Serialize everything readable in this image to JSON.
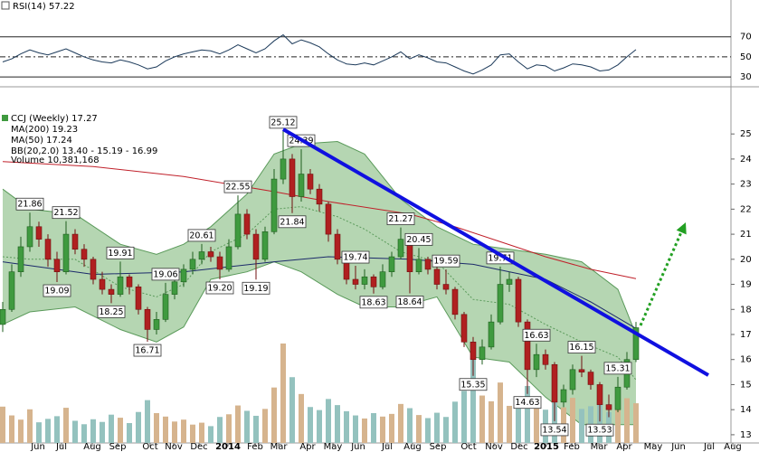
{
  "chart_data": {
    "type": "candlestick",
    "title": "CCJ (Weekly) 17.27",
    "x": [
      0,
      1,
      2,
      3,
      4,
      5,
      6,
      7,
      8,
      9,
      10,
      11,
      12,
      13,
      14,
      15,
      16,
      17,
      18,
      19,
      20,
      21,
      22,
      23,
      24,
      25,
      26,
      27,
      28,
      29,
      30,
      31,
      32,
      33,
      34,
      35,
      36,
      37,
      38,
      39,
      40,
      41,
      42,
      43,
      44,
      45,
      46,
      47,
      48,
      49,
      50,
      51,
      52,
      53,
      54,
      55,
      56,
      57,
      58,
      59,
      60,
      61,
      62,
      63,
      64,
      65,
      66,
      67,
      68,
      69,
      70
    ],
    "open": [
      17.4,
      18.0,
      19.5,
      20.5,
      21.3,
      20.8,
      20.0,
      19.5,
      21.0,
      20.4,
      20.0,
      19.2,
      18.8,
      18.6,
      19.3,
      18.9,
      18.0,
      17.2,
      17.6,
      18.6,
      19.1,
      19.6,
      20.0,
      20.3,
      20.1,
      19.6,
      20.5,
      21.8,
      21.0,
      20.0,
      21.1,
      23.2,
      24.0,
      22.5,
      23.4,
      22.8,
      22.2,
      21.0,
      20.0,
      19.2,
      19.0,
      19.3,
      18.9,
      19.5,
      20.1,
      20.8,
      19.5,
      20.0,
      19.6,
      19.0,
      18.8,
      17.8,
      16.7,
      16.0,
      16.5,
      17.5,
      19.0,
      19.2,
      17.5,
      15.6,
      16.2,
      15.8,
      14.3,
      14.8,
      15.6,
      15.5,
      15.0,
      14.2,
      14.0,
      14.9,
      16.0
    ],
    "high": [
      18.3,
      19.8,
      20.9,
      21.86,
      21.5,
      21.0,
      20.3,
      21.52,
      21.2,
      20.6,
      20.1,
      19.5,
      19.0,
      19.91,
      19.4,
      19.0,
      18.1,
      17.9,
      19.06,
      19.4,
      19.8,
      20.3,
      20.61,
      20.5,
      20.3,
      20.8,
      22.55,
      22.0,
      21.2,
      21.3,
      23.6,
      25.12,
      24.2,
      24.39,
      23.6,
      23.0,
      22.3,
      21.2,
      20.2,
      19.74,
      19.6,
      19.4,
      19.8,
      20.3,
      21.27,
      20.9,
      20.45,
      20.1,
      19.7,
      19.59,
      18.9,
      17.9,
      16.9,
      16.8,
      17.8,
      19.71,
      19.5,
      19.3,
      17.6,
      16.63,
      16.4,
      15.9,
      15.0,
      15.8,
      16.15,
      15.6,
      15.1,
      14.6,
      15.31,
      16.3,
      17.5
    ],
    "low": [
      17.1,
      17.9,
      19.3,
      20.3,
      20.5,
      19.7,
      19.09,
      19.4,
      20.2,
      19.7,
      19.0,
      18.6,
      18.25,
      18.5,
      18.6,
      17.8,
      16.71,
      17.0,
      17.5,
      18.4,
      18.9,
      19.4,
      19.8,
      19.9,
      19.2,
      19.5,
      20.4,
      20.8,
      19.19,
      19.9,
      21.0,
      23.0,
      21.84,
      22.3,
      22.6,
      21.9,
      20.7,
      19.8,
      19.0,
      18.8,
      18.8,
      18.63,
      18.8,
      19.3,
      20.0,
      18.64,
      19.4,
      19.4,
      18.8,
      18.6,
      17.6,
      16.5,
      15.35,
      15.8,
      16.4,
      17.4,
      18.7,
      17.3,
      14.63,
      15.3,
      15.6,
      13.54,
      14.1,
      14.6,
      15.3,
      14.8,
      13.53,
      13.7,
      13.9,
      14.8,
      15.9
    ],
    "close": [
      18.0,
      19.5,
      20.5,
      21.3,
      20.8,
      20.0,
      19.5,
      21.0,
      20.4,
      20.0,
      19.2,
      18.8,
      18.6,
      19.3,
      18.9,
      18.0,
      17.2,
      17.6,
      18.6,
      19.1,
      19.6,
      20.0,
      20.3,
      20.1,
      19.6,
      20.5,
      21.8,
      21.0,
      20.0,
      21.1,
      23.2,
      24.0,
      22.5,
      23.4,
      22.8,
      22.2,
      21.0,
      20.0,
      19.2,
      19.0,
      19.3,
      18.9,
      19.5,
      20.1,
      20.8,
      19.5,
      20.0,
      19.6,
      19.0,
      18.8,
      17.8,
      16.7,
      16.0,
      16.5,
      17.5,
      19.0,
      19.2,
      17.5,
      15.6,
      16.2,
      15.8,
      14.3,
      14.8,
      15.6,
      15.5,
      15.0,
      14.2,
      14.0,
      14.9,
      16.0,
      17.27
    ],
    "volume_name": "Volume 10,381,168",
    "volume": [
      9500000,
      7200000,
      6100000,
      8800000,
      5400000,
      6300000,
      7000000,
      9200000,
      5800000,
      4900000,
      6200000,
      5500000,
      7400000,
      6600000,
      5200000,
      8100000,
      11200000,
      7800000,
      6900000,
      5600000,
      6100000,
      4800000,
      5300000,
      4400000,
      6800000,
      7500000,
      9800000,
      8400000,
      7100000,
      8900000,
      14500000,
      26000000,
      17200000,
      12800000,
      9400000,
      8600000,
      11500000,
      9900000,
      8300000,
      7200000,
      6400000,
      7800000,
      6900000,
      7600000,
      10200000,
      9100000,
      7300000,
      6500000,
      7900000,
      6800000,
      10800000,
      13600000,
      24000000,
      12400000,
      10900000,
      15800000,
      9700000,
      11300000,
      14900000,
      10600000,
      8700000,
      12200000,
      9300000,
      11800000,
      8900000,
      9600000,
      12700000,
      8100000,
      9400000,
      11700000,
      10381168
    ],
    "up_color": "#3f9a3f",
    "down_color": "#b02020",
    "volume_up_color": "#d6b48e",
    "volume_down_color": "#94c2be",
    "xlim": [
      -0.3,
      83.6
    ],
    "xticks": [
      {
        "value": 3.9,
        "label": "Jun"
      },
      {
        "value": 6.5,
        "label": "Jul"
      },
      {
        "value": 9.9,
        "label": "Aug"
      },
      {
        "value": 12.7,
        "label": "Sep"
      },
      {
        "value": 16.3,
        "label": "Oct"
      },
      {
        "value": 18.9,
        "label": "Nov"
      },
      {
        "value": 21.7,
        "label": "Dec"
      },
      {
        "value": 24.9,
        "label": "2014"
      },
      {
        "value": 27.9,
        "label": "Feb"
      },
      {
        "value": 30.5,
        "label": "Mar"
      },
      {
        "value": 33.7,
        "label": "Apr"
      },
      {
        "value": 36.5,
        "label": "May"
      },
      {
        "value": 39.3,
        "label": "Jun"
      },
      {
        "value": 42.5,
        "label": "Jul"
      },
      {
        "value": 45.3,
        "label": "Aug"
      },
      {
        "value": 48.1,
        "label": "Sep"
      },
      {
        "value": 51.5,
        "label": "Oct"
      },
      {
        "value": 54.3,
        "label": "Nov"
      },
      {
        "value": 57.1,
        "label": "Dec"
      },
      {
        "value": 60.1,
        "label": "2015"
      },
      {
        "value": 62.9,
        "label": "Feb"
      },
      {
        "value": 65.9,
        "label": "Mar"
      },
      {
        "value": 68.7,
        "label": "Apr"
      },
      {
        "value": 71.9,
        "label": "May"
      },
      {
        "value": 74.7,
        "label": "Jun"
      },
      {
        "value": 78.1,
        "label": "Jul"
      },
      {
        "value": 80.7,
        "label": "Aug"
      }
    ],
    "ylim": [
      12.6,
      25.8
    ],
    "yticks": [
      13,
      14,
      15,
      16,
      17,
      18,
      19,
      20,
      21,
      22,
      23,
      24,
      25
    ],
    "series": [
      {
        "name": "MA(200) 19.23",
        "color": "#c0202a",
        "x": [
          0,
          10,
          20,
          30,
          36,
          45,
          50,
          55,
          60,
          65,
          70
        ],
        "values": [
          23.9,
          23.7,
          23.3,
          22.7,
          22.3,
          21.8,
          21.3,
          20.7,
          20.1,
          19.6,
          19.23
        ]
      },
      {
        "name": "MA(50) 17.24",
        "color": "#1c2a6a",
        "x": [
          0,
          10,
          20,
          30,
          36,
          45,
          52,
          60,
          65,
          70
        ],
        "values": [
          19.9,
          19.4,
          19.5,
          19.9,
          20.1,
          20.0,
          19.8,
          19.2,
          18.3,
          17.24
        ]
      }
    ],
    "bands": {
      "name": "BB(20,2.0) 13.40 - 15.19 - 16.99",
      "color": "#5a9a5a",
      "x": [
        0,
        3,
        8,
        13,
        17,
        20,
        23,
        27,
        30,
        33,
        37,
        40,
        44,
        48,
        52,
        56,
        60,
        64,
        68,
        70
      ],
      "upper": [
        22.8,
        22.0,
        21.8,
        20.6,
        20.2,
        20.6,
        21.3,
        22.6,
        24.2,
        24.6,
        24.7,
        24.2,
        22.4,
        21.3,
        20.6,
        20.4,
        20.2,
        19.9,
        18.8,
        16.99
      ],
      "middle": [
        20.1,
        20.0,
        20.0,
        18.9,
        18.5,
        19.0,
        20.3,
        21.0,
        22.0,
        22.1,
        21.7,
        21.2,
        20.3,
        19.9,
        18.4,
        18.2,
        17.4,
        16.7,
        16.1,
        15.19
      ],
      "lower": [
        17.4,
        17.9,
        18.1,
        17.2,
        16.7,
        17.3,
        19.2,
        19.5,
        19.9,
        19.5,
        18.6,
        18.1,
        18.1,
        18.5,
        16.1,
        15.9,
        14.5,
        13.4,
        13.4,
        13.4
      ]
    },
    "annotations": [
      {
        "x": 3,
        "value": 21.86
      },
      {
        "x": 6,
        "value": 19.09
      },
      {
        "x": 7,
        "value": 21.52
      },
      {
        "x": 12,
        "value": 18.25
      },
      {
        "x": 13,
        "value": 19.91
      },
      {
        "x": 16,
        "value": 16.71
      },
      {
        "x": 18,
        "value": 19.06
      },
      {
        "x": 22,
        "value": 20.61
      },
      {
        "x": 24,
        "value": 19.2,
        "label": "19.20"
      },
      {
        "x": 26,
        "value": 22.55
      },
      {
        "x": 28,
        "value": 19.19
      },
      {
        "x": 31,
        "value": 25.12
      },
      {
        "x": 32,
        "value": 21.84
      },
      {
        "x": 33,
        "value": 24.39
      },
      {
        "x": 39,
        "value": 19.74
      },
      {
        "x": 41,
        "value": 18.63
      },
      {
        "x": 44,
        "value": 21.27
      },
      {
        "x": 45,
        "value": 18.64
      },
      {
        "x": 46,
        "value": 20.45
      },
      {
        "x": 49,
        "value": 19.59
      },
      {
        "x": 52,
        "value": 15.35
      },
      {
        "x": 55,
        "value": 19.71
      },
      {
        "x": 58,
        "value": 14.63
      },
      {
        "x": 59,
        "value": 16.63
      },
      {
        "x": 61,
        "value": 13.54
      },
      {
        "x": 64,
        "value": 16.15
      },
      {
        "x": 66,
        "value": 13.53
      },
      {
        "x": 68,
        "value": 15.31
      }
    ],
    "rsi": {
      "title": "RSI(14) 57.22",
      "color": "#1c3a5a",
      "values": [
        45,
        48,
        53,
        57,
        54,
        52,
        55,
        58,
        54,
        50,
        47,
        45,
        44,
        47,
        45,
        42,
        38,
        40,
        46,
        50,
        53,
        55,
        57,
        56,
        53,
        57,
        62,
        58,
        54,
        58,
        66,
        72,
        63,
        67,
        64,
        60,
        53,
        47,
        43,
        42,
        44,
        42,
        46,
        50,
        55,
        48,
        52,
        49,
        45,
        44,
        40,
        36,
        33,
        37,
        42,
        52,
        53,
        45,
        38,
        42,
        41,
        36,
        39,
        43,
        42,
        40,
        36,
        37,
        42,
        50,
        57.22
      ],
      "ylim": [
        22,
        104
      ],
      "yticks": [
        30,
        50,
        70
      ]
    }
  }
}
